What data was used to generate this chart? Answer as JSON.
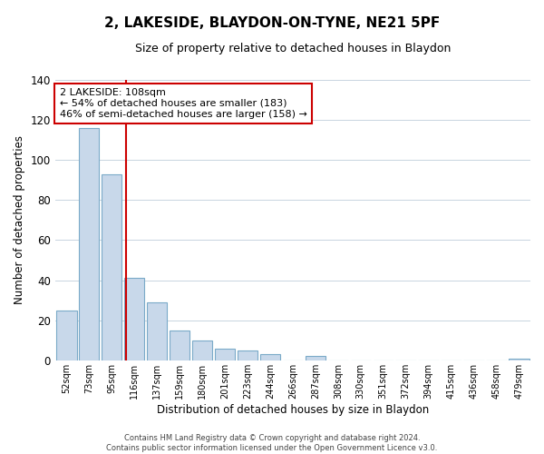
{
  "title": "2, LAKESIDE, BLAYDON-ON-TYNE, NE21 5PF",
  "subtitle": "Size of property relative to detached houses in Blaydon",
  "xlabel": "Distribution of detached houses by size in Blaydon",
  "ylabel": "Number of detached properties",
  "bin_labels": [
    "52sqm",
    "73sqm",
    "95sqm",
    "116sqm",
    "137sqm",
    "159sqm",
    "180sqm",
    "201sqm",
    "223sqm",
    "244sqm",
    "266sqm",
    "287sqm",
    "308sqm",
    "330sqm",
    "351sqm",
    "372sqm",
    "394sqm",
    "415sqm",
    "436sqm",
    "458sqm",
    "479sqm"
  ],
  "bar_heights": [
    25,
    116,
    93,
    41,
    29,
    15,
    10,
    6,
    5,
    3,
    0,
    2,
    0,
    0,
    0,
    0,
    0,
    0,
    0,
    0,
    1
  ],
  "bar_color": "#c8d8ea",
  "bar_edge_color": "#7aaac8",
  "ylim": [
    0,
    140
  ],
  "yticks": [
    0,
    20,
    40,
    60,
    80,
    100,
    120,
    140
  ],
  "property_line_color": "#cc0000",
  "annotation_title": "2 LAKESIDE: 108sqm",
  "annotation_line1": "← 54% of detached houses are smaller (183)",
  "annotation_line2": "46% of semi-detached houses are larger (158) →",
  "annotation_box_color": "#ffffff",
  "annotation_box_edge": "#cc0000",
  "footer_line1": "Contains HM Land Registry data © Crown copyright and database right 2024.",
  "footer_line2": "Contains public sector information licensed under the Open Government Licence v3.0.",
  "background_color": "#ffffff",
  "grid_color": "#c8d4e0"
}
